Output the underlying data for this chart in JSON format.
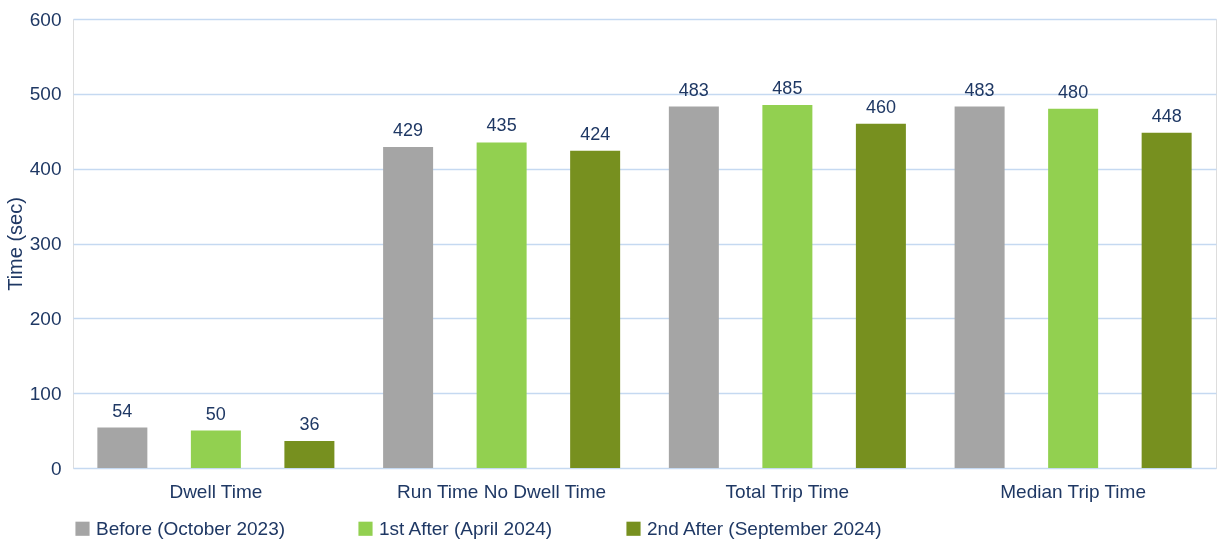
{
  "chart_data": {
    "type": "bar",
    "ylabel": "Time (sec)",
    "categories": [
      "Dwell Time",
      "Run Time No Dwell Time",
      "Total Trip Time",
      "Median Trip Time"
    ],
    "series": [
      {
        "name": "Before (October 2023)",
        "color": "#a5a5a5",
        "values": [
          54,
          429,
          483,
          483
        ]
      },
      {
        "name": "1st After (April 2024)",
        "color": "#92d050",
        "values": [
          50,
          435,
          485,
          480
        ]
      },
      {
        "name": "2nd After (September 2024)",
        "color": "#77901f",
        "values": [
          36,
          424,
          460,
          448
        ]
      }
    ],
    "ylim": [
      0,
      600
    ],
    "yticks": [
      0,
      100,
      200,
      300,
      400,
      500,
      600
    ],
    "grid": "y",
    "legend": "bottom",
    "data_labels": true
  }
}
